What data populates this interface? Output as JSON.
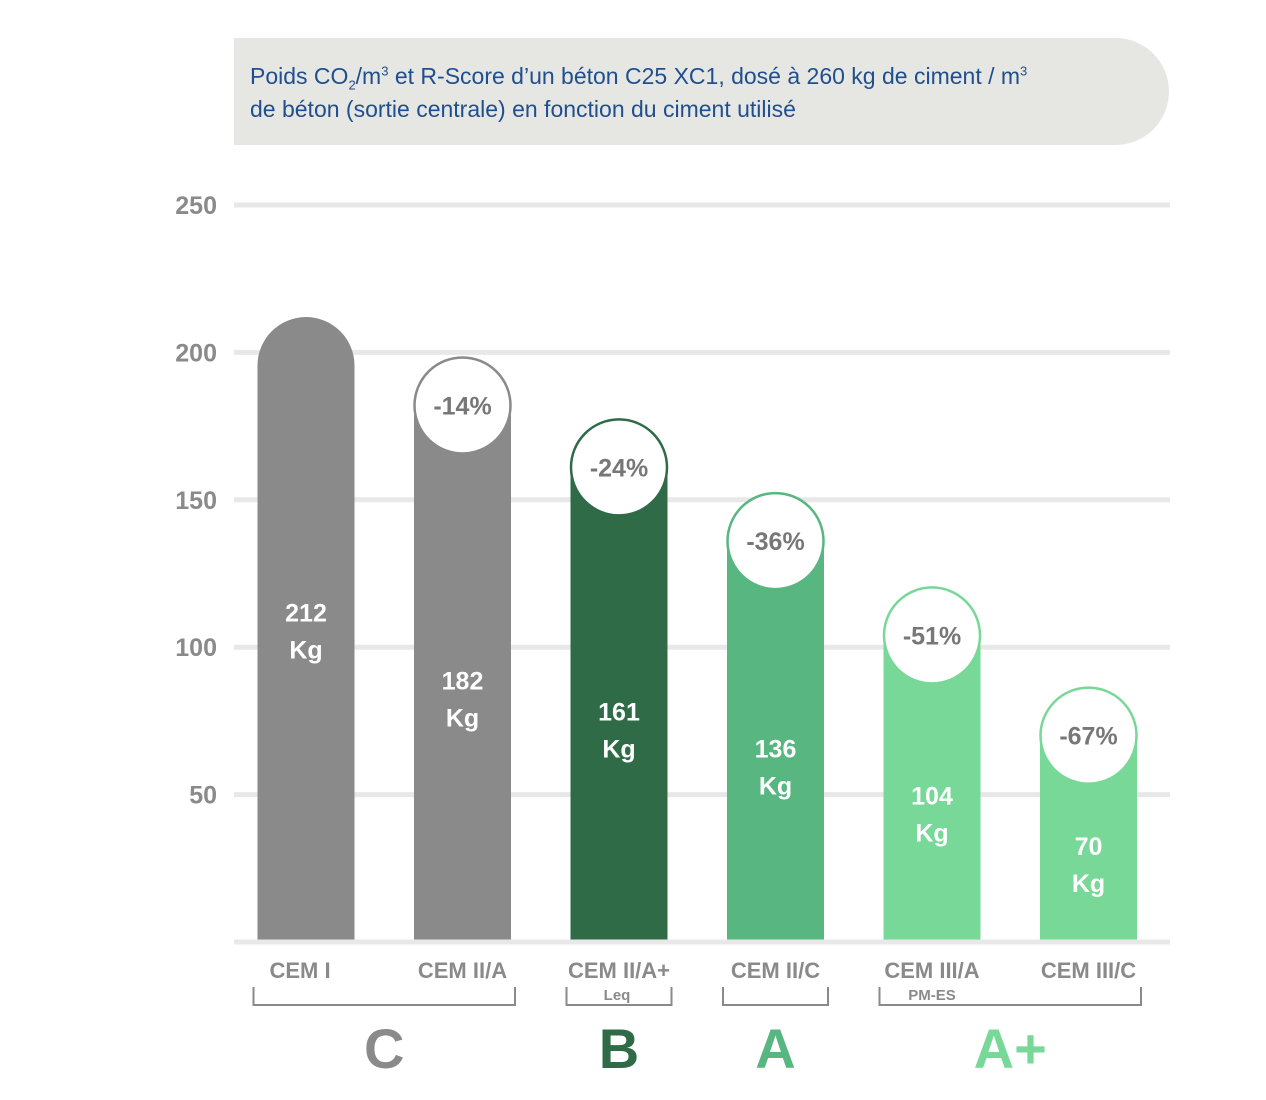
{
  "title": {
    "line1_a": "Poids CO",
    "line1_sub": "2",
    "line1_b": "/m",
    "line1_sup": "3",
    "line1_c": " et R-Score d’un béton C25 XC1, dosé à 260 kg de ciment / m",
    "line1_sup2": "3",
    "line2": "de béton (sortie centrale) en fonction du ciment utilisé"
  },
  "chart_data": {
    "type": "bar",
    "title": "Poids CO2/m3 et R-Score d’un béton C25 XC1, dosé à 260 kg de ciment / m3 de béton (sortie centrale) en fonction du ciment utilisé",
    "xlabel": "",
    "ylabel": "",
    "ylim": [
      0,
      250
    ],
    "yticks": [
      "250",
      "200",
      "150",
      "100",
      "50"
    ],
    "grid": true,
    "categories": [
      "CEM I",
      "CEM II/A",
      "CEM II/A+",
      "CEM II/C",
      "CEM III/A",
      "CEM III/C"
    ],
    "category_sublabels": [
      "",
      "",
      "Leq",
      "",
      "PM-ES",
      ""
    ],
    "values": [
      212,
      182,
      161,
      136,
      104,
      70
    ],
    "value_labels": [
      [
        "212",
        "Kg"
      ],
      [
        "182",
        "Kg"
      ],
      [
        "161",
        "Kg"
      ],
      [
        "136",
        "Kg"
      ],
      [
        "104",
        "Kg"
      ],
      [
        "70",
        "Kg"
      ]
    ],
    "reduction_labels": [
      "",
      "-14%",
      "-24%",
      "-36%",
      "-51%",
      "-67%"
    ],
    "bar_colors": [
      "#8a8a8a",
      "#8a8a8a",
      "#2f6b47",
      "#58b680",
      "#77d898",
      "#77d898"
    ],
    "groups": [
      {
        "label": "C",
        "first": 0,
        "last": 1,
        "color": "#8a8a8a"
      },
      {
        "label": "B",
        "first": 2,
        "last": 2,
        "color": "#2f6b47"
      },
      {
        "label": "A",
        "first": 3,
        "last": 3,
        "color": "#58b680"
      },
      {
        "label": "A+",
        "first": 4,
        "last": 5,
        "color": "#77d898"
      }
    ],
    "colors": {
      "grid": "#e8e8e8",
      "axis_text": "#8a8a8a",
      "percent_text": "#777777"
    }
  }
}
